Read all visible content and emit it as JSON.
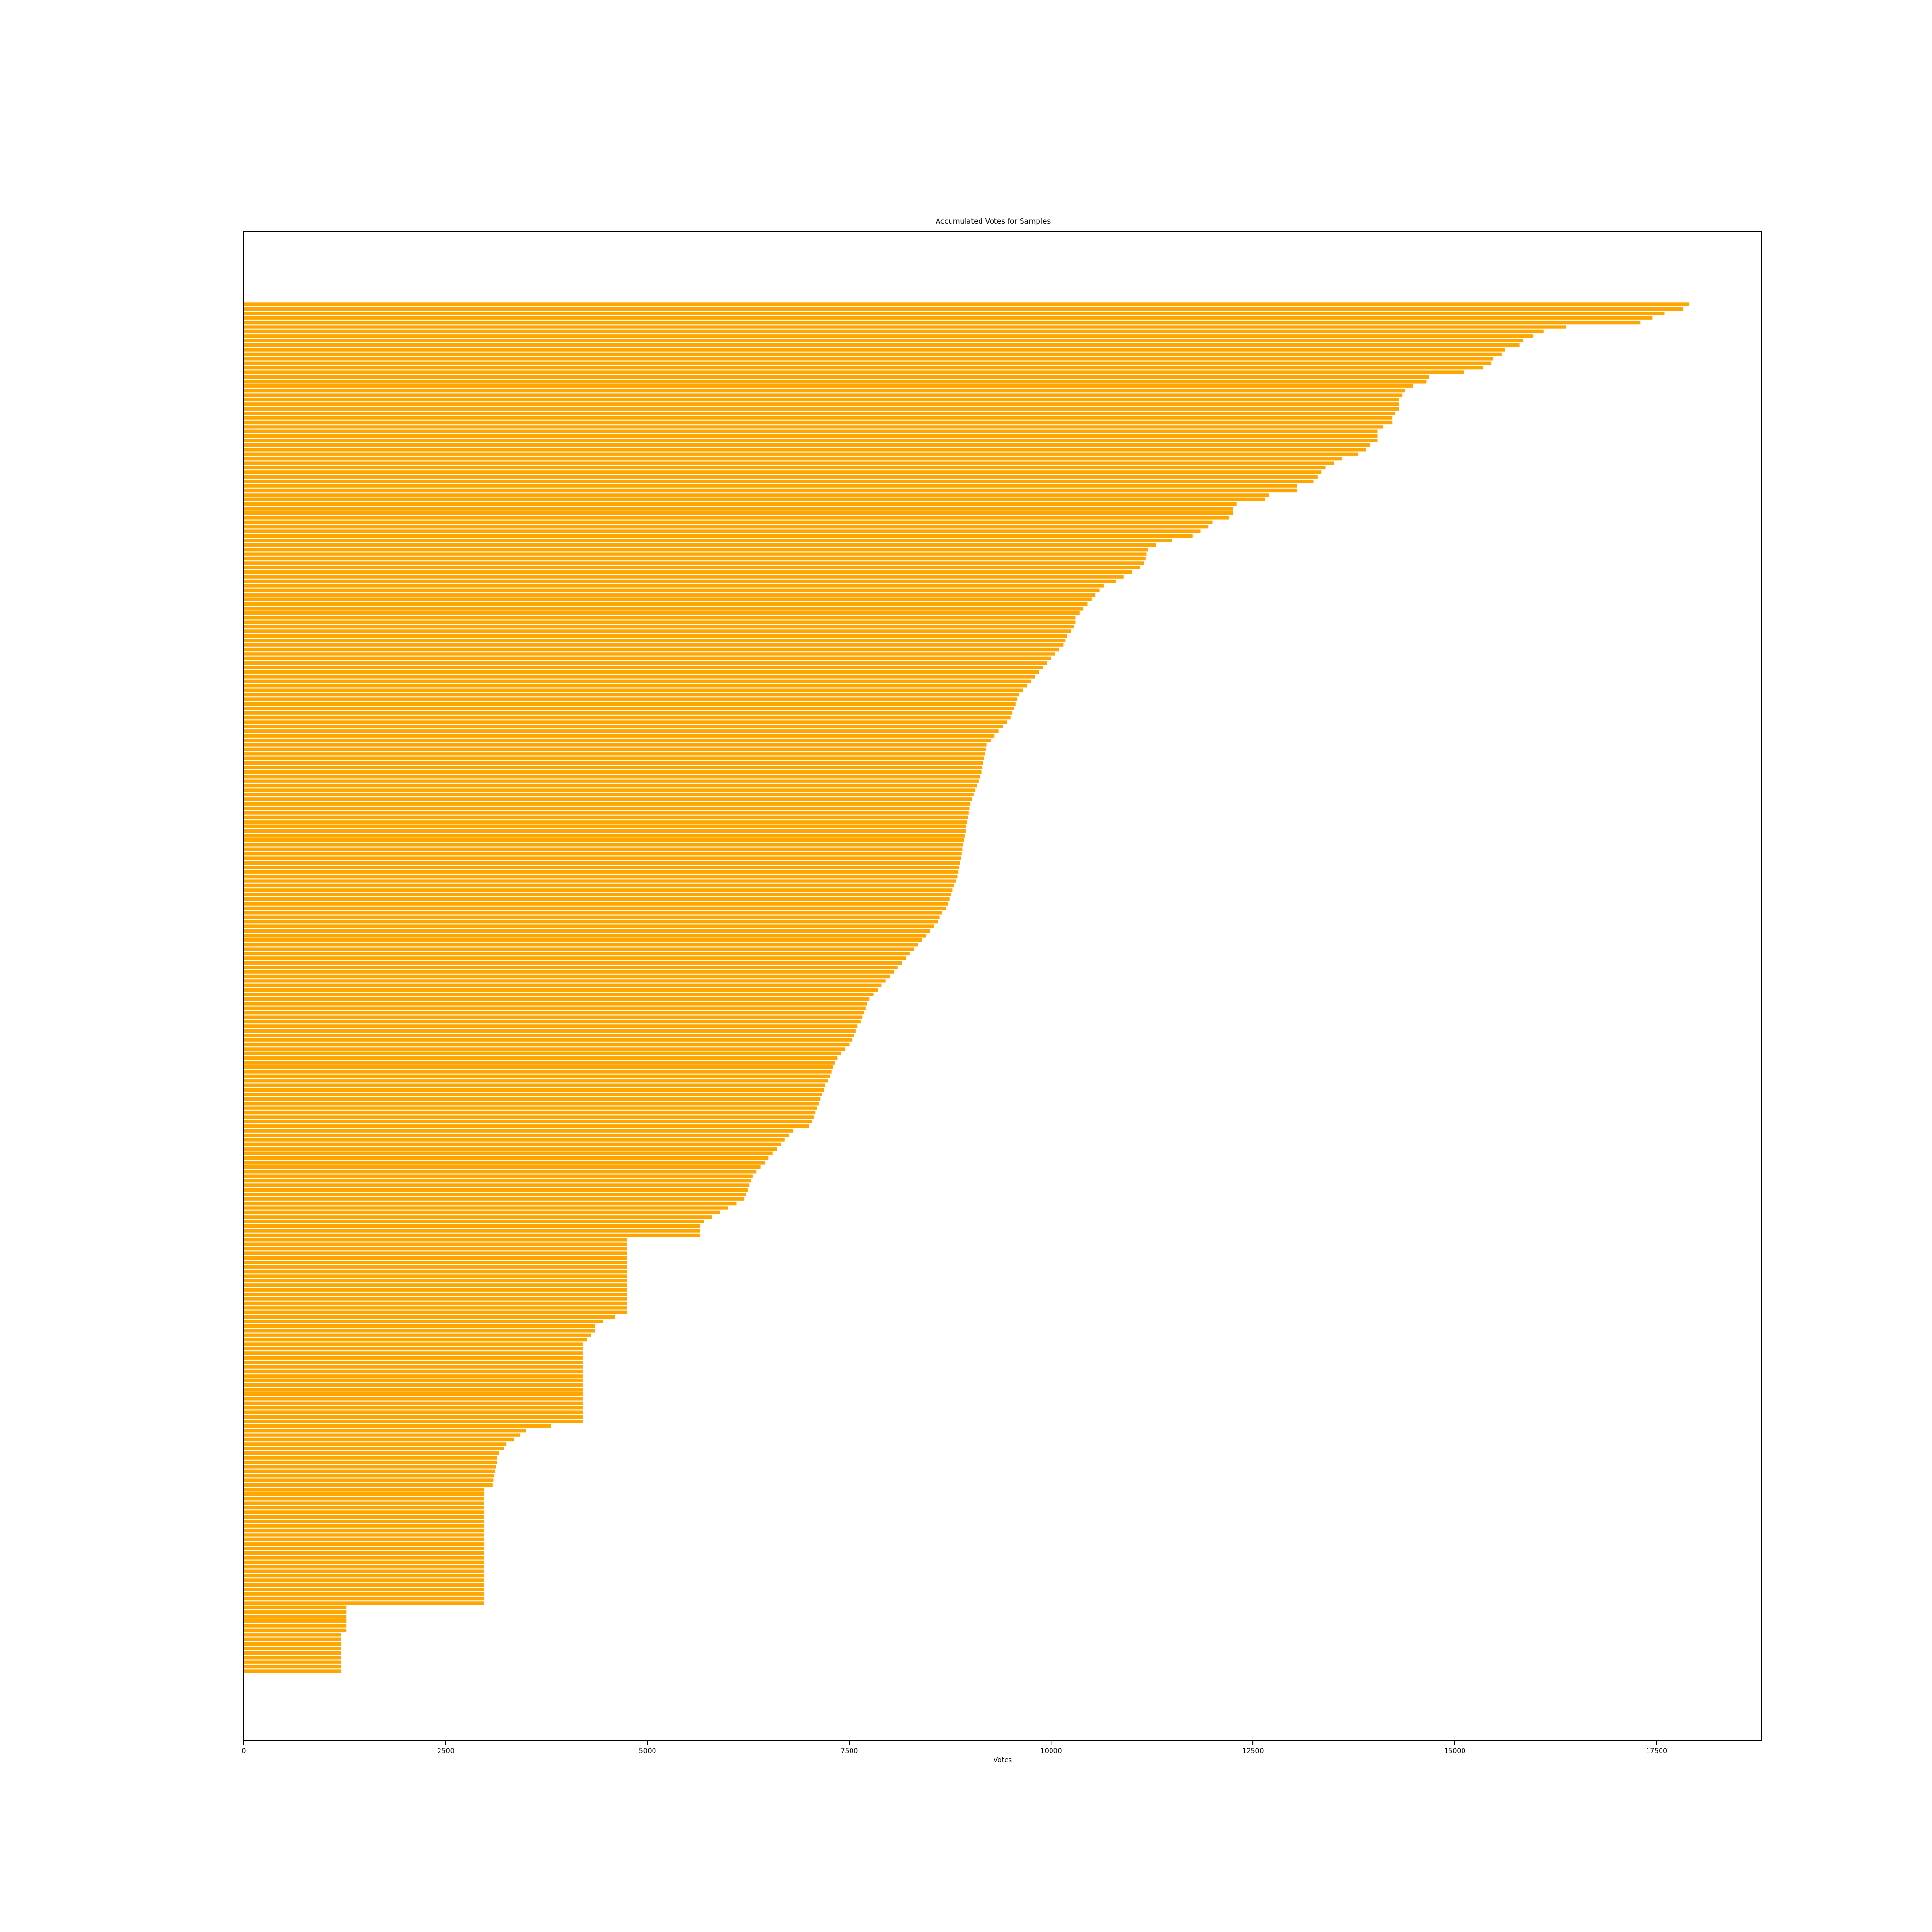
{
  "chart_data": {
    "type": "bar",
    "orientation": "horizontal",
    "title": "Accumulated Votes for Samples",
    "xlabel": "Votes",
    "ylabel": "",
    "xlim": [
      0,
      18800
    ],
    "xticks": [
      0,
      2500,
      5000,
      7500,
      10000,
      12500,
      15000,
      17500
    ],
    "xtick_labels": [
      "0",
      "2500",
      "5000",
      "7500",
      "10000",
      "12500",
      "15000",
      "17500"
    ],
    "grid": false,
    "legend": "none",
    "bar_color": "#FFA500",
    "category_labels_legible": false,
    "series": [
      {
        "values": [
          17900,
          17830,
          17600,
          17450,
          17300,
          16380,
          16100,
          15970,
          15850,
          15800,
          15620,
          15580,
          15480,
          15450,
          15350,
          15120,
          14680,
          14650,
          14480,
          14380,
          14350,
          14310,
          14310,
          14310,
          14260,
          14230,
          14230,
          14110,
          14040,
          14040,
          14040,
          13950,
          13900,
          13800,
          13600,
          13500,
          13400,
          13350,
          13300,
          13250,
          13050,
          13050,
          12700,
          12650,
          12300,
          12250,
          12250,
          12200,
          12000,
          11950,
          11850,
          11750,
          11500,
          11300,
          11200,
          11180,
          11170,
          11150,
          11100,
          11000,
          10900,
          10800,
          10650,
          10600,
          10550,
          10500,
          10450,
          10400,
          10350,
          10300,
          10300,
          10280,
          10250,
          10200,
          10180,
          10150,
          10100,
          10050,
          10000,
          9950,
          9900,
          9850,
          9800,
          9750,
          9700,
          9650,
          9600,
          9580,
          9560,
          9540,
          9520,
          9500,
          9450,
          9400,
          9350,
          9300,
          9250,
          9200,
          9190,
          9180,
          9170,
          9160,
          9150,
          9140,
          9120,
          9100,
          9080,
          9060,
          9040,
          9020,
          9000,
          8990,
          8980,
          8970,
          8960,
          8950,
          8940,
          8930,
          8920,
          8910,
          8900,
          8890,
          8880,
          8870,
          8860,
          8850,
          8840,
          8820,
          8800,
          8780,
          8760,
          8740,
          8720,
          8700,
          8650,
          8620,
          8600,
          8550,
          8500,
          8450,
          8400,
          8350,
          8300,
          8250,
          8200,
          8150,
          8100,
          8050,
          8000,
          7950,
          7900,
          7850,
          7800,
          7750,
          7720,
          7700,
          7680,
          7660,
          7640,
          7600,
          7580,
          7560,
          7540,
          7500,
          7450,
          7400,
          7350,
          7320,
          7300,
          7280,
          7260,
          7240,
          7200,
          7180,
          7160,
          7140,
          7120,
          7100,
          7080,
          7060,
          7040,
          7000,
          6800,
          6750,
          6700,
          6650,
          6600,
          6550,
          6500,
          6450,
          6400,
          6350,
          6300,
          6280,
          6260,
          6240,
          6220,
          6200,
          6100,
          6000,
          5900,
          5800,
          5700,
          5650,
          5650,
          5650,
          4750,
          4750,
          4750,
          4750,
          4750,
          4750,
          4750,
          4750,
          4750,
          4750,
          4750,
          4750,
          4750,
          4750,
          4750,
          4750,
          4750,
          4600,
          4450,
          4350,
          4350,
          4300,
          4250,
          4200,
          4200,
          4200,
          4200,
          4200,
          4200,
          4200,
          4200,
          4200,
          4200,
          4200,
          4200,
          4200,
          4200,
          4200,
          4200,
          4200,
          4200,
          3800,
          3500,
          3420,
          3350,
          3250,
          3220,
          3160,
          3140,
          3130,
          3120,
          3110,
          3100,
          3090,
          3080,
          2980,
          2980,
          2980,
          2980,
          2980,
          2980,
          2980,
          2980,
          2980,
          2980,
          2980,
          2980,
          2980,
          2980,
          2980,
          2980,
          2980,
          2980,
          2980,
          2980,
          2980,
          2980,
          2980,
          2980,
          2980,
          2980,
          1270,
          1270,
          1270,
          1270,
          1270,
          1270,
          1200,
          1200,
          1200,
          1200,
          1200,
          1200,
          1200,
          1200,
          1200
        ]
      }
    ]
  }
}
